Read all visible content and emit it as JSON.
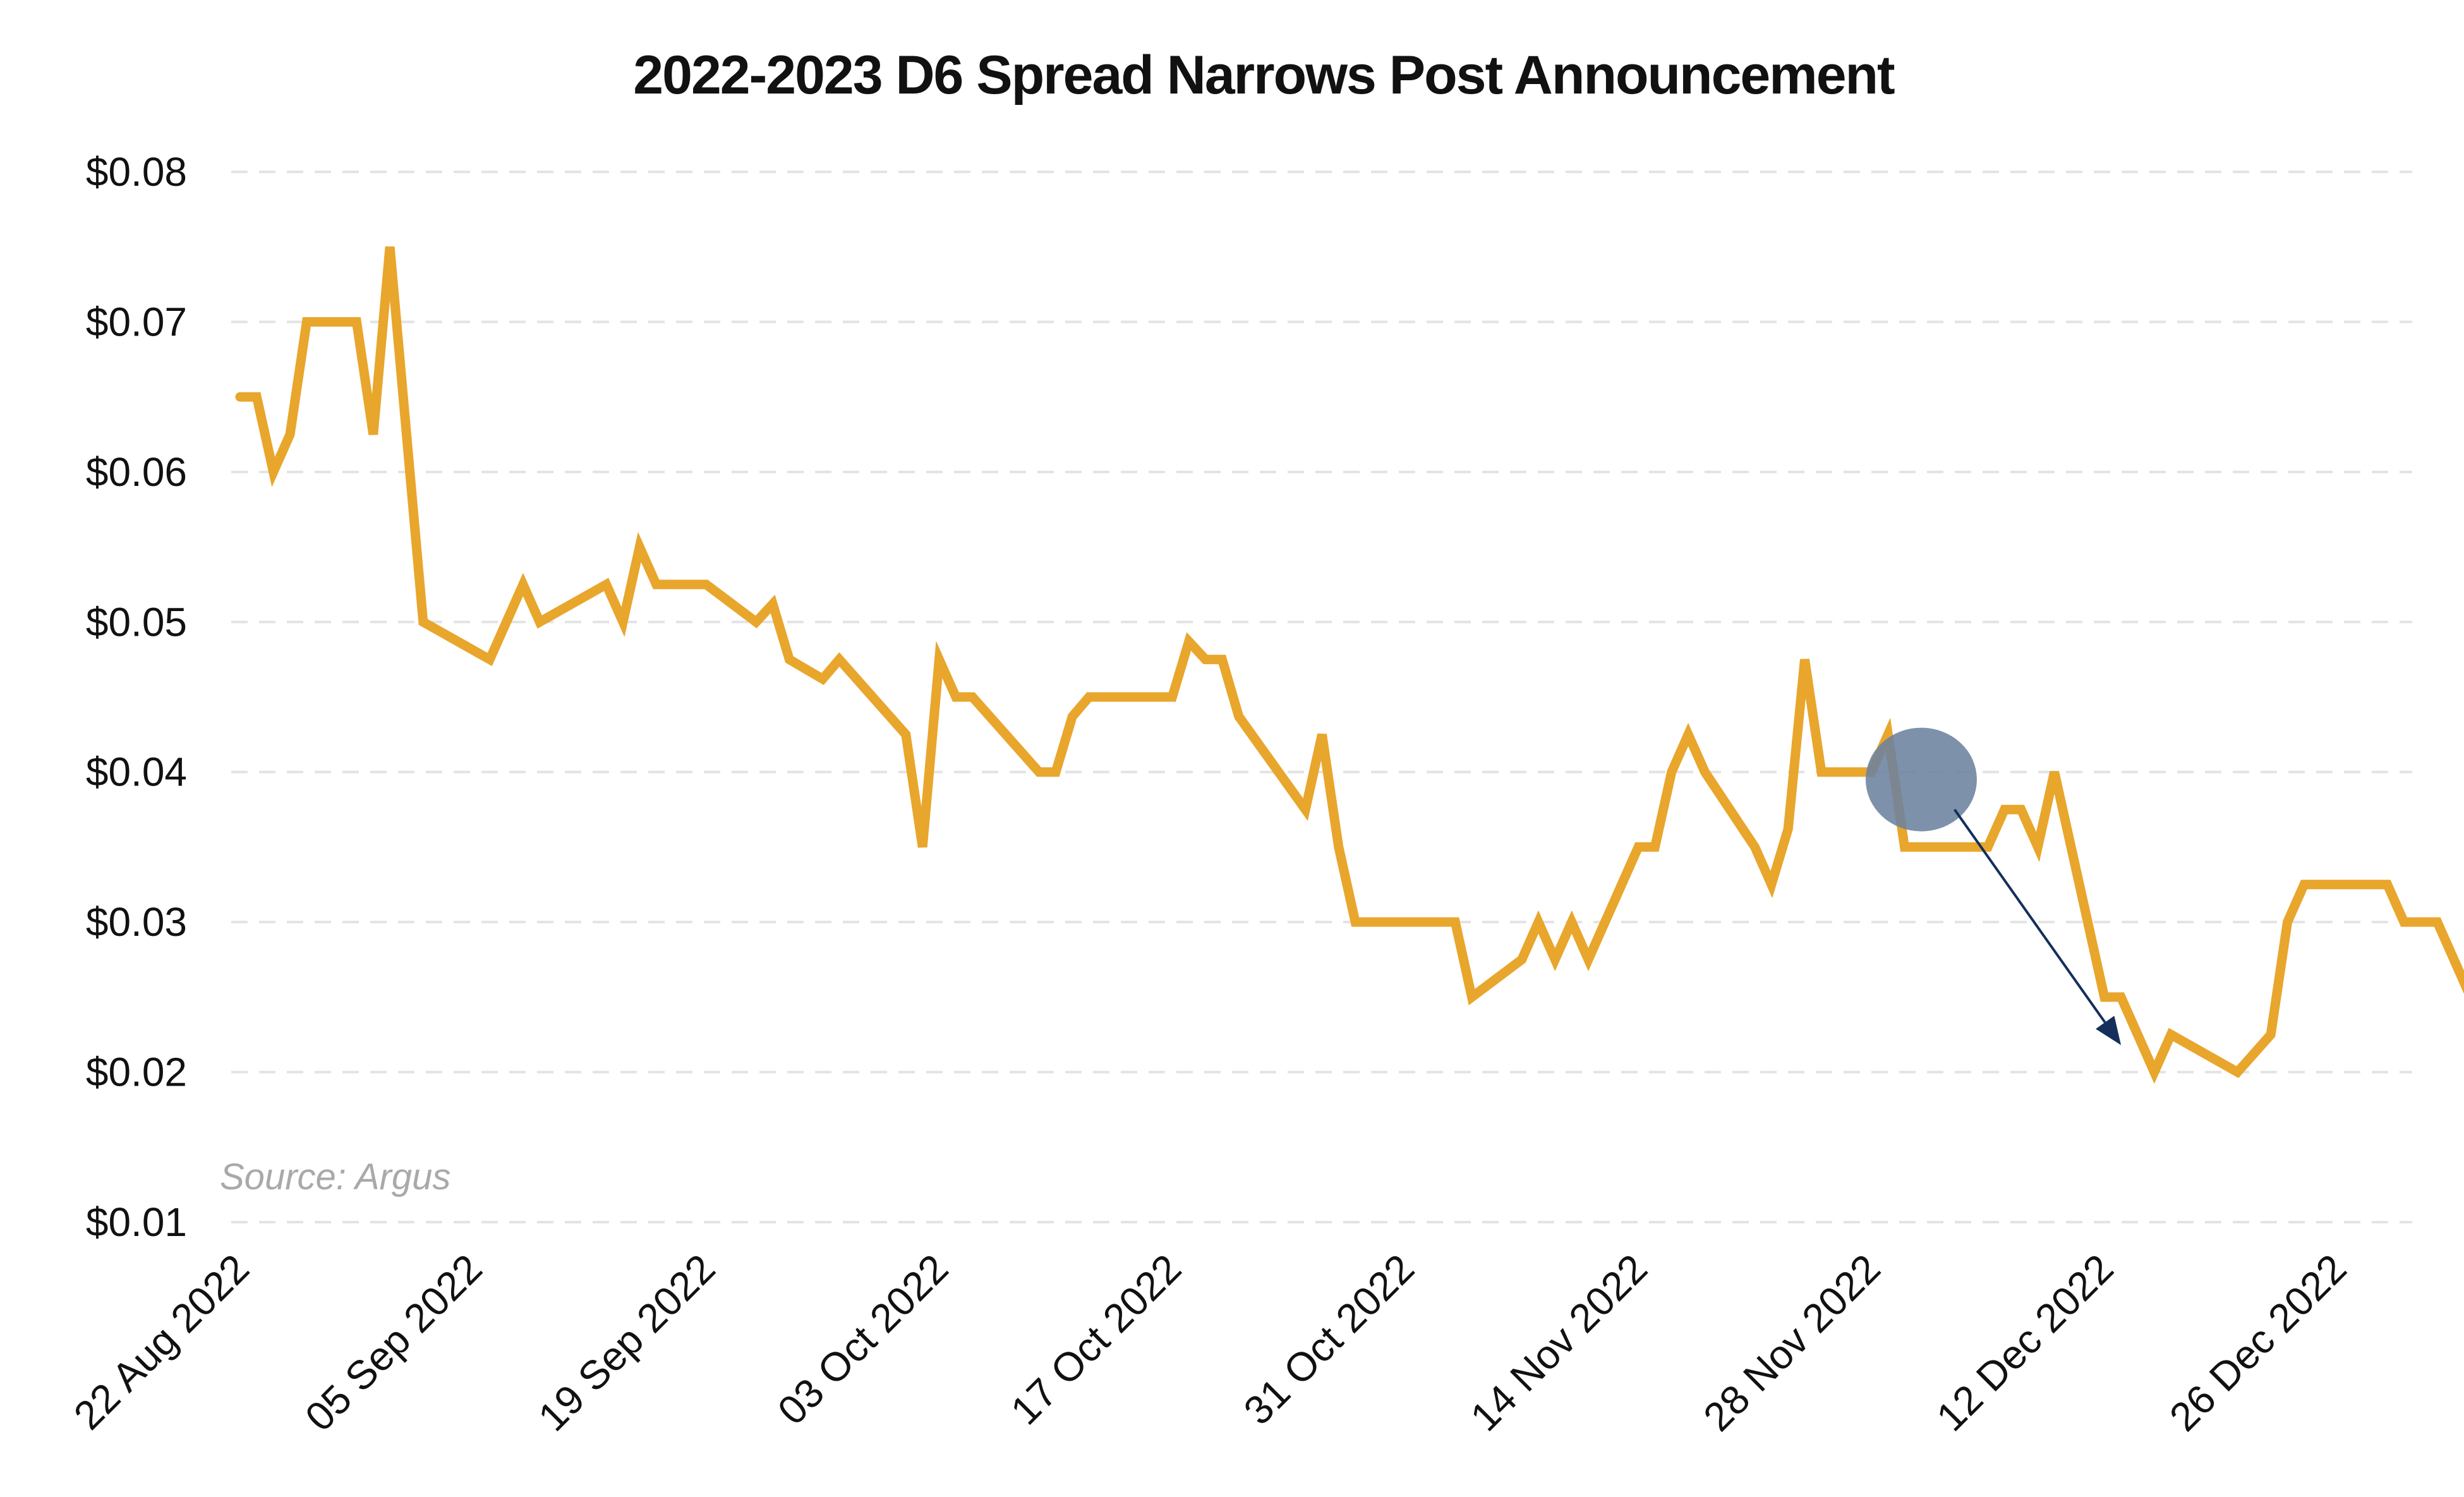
{
  "chart_data": {
    "type": "line",
    "title": "2022-2023 D6 Spread Narrows Post Announcement",
    "xlabel": "",
    "ylabel": "",
    "ylim": [
      0.01,
      0.08
    ],
    "xlim": [
      "2022-08-22",
      "2022-12-30"
    ],
    "y_ticks": [
      {
        "value": 0.08,
        "label": "$0.08"
      },
      {
        "value": 0.07,
        "label": "$0.07"
      },
      {
        "value": 0.06,
        "label": "$0.06"
      },
      {
        "value": 0.05,
        "label": "$0.05"
      },
      {
        "value": 0.04,
        "label": "$0.04"
      },
      {
        "value": 0.03,
        "label": "$0.03"
      },
      {
        "value": 0.02,
        "label": "$0.02"
      },
      {
        "value": 0.01,
        "label": "$0.01"
      }
    ],
    "x_ticks": [
      {
        "date": "2022-08-22",
        "label": "22 Aug 2022"
      },
      {
        "date": "2022-09-05",
        "label": "05 Sep 2022"
      },
      {
        "date": "2022-09-19",
        "label": "19 Sep 2022"
      },
      {
        "date": "2022-10-03",
        "label": "03 Oct 2022"
      },
      {
        "date": "2022-10-17",
        "label": "17 Oct 2022"
      },
      {
        "date": "2022-10-31",
        "label": "31 Oct 2022"
      },
      {
        "date": "2022-11-14",
        "label": "14 Nov 2022"
      },
      {
        "date": "2022-11-28",
        "label": "28 Nov 2022"
      },
      {
        "date": "2022-12-12",
        "label": "12 Dec 2022"
      },
      {
        "date": "2022-12-26",
        "label": "26 Dec 2022"
      }
    ],
    "grid": true,
    "source": "Source: Argus",
    "line_color": "#E8A62C",
    "highlight": {
      "date": "2022-12-01",
      "value": 0.0395,
      "color": "#6B829E"
    },
    "arrow": {
      "from": {
        "date": "2022-12-03",
        "value": 0.0375
      },
      "to": {
        "date": "2022-12-13",
        "value": 0.0218
      },
      "color": "#142F5A"
    },
    "series": [
      {
        "points": [
          [
            "2022-08-22",
            0.065
          ],
          [
            "2022-08-23",
            0.065
          ],
          [
            "2022-08-24",
            0.06
          ],
          [
            "2022-08-25",
            0.0625
          ],
          [
            "2022-08-26",
            0.07
          ],
          [
            "2022-08-29",
            0.07
          ],
          [
            "2022-08-30",
            0.0625
          ],
          [
            "2022-08-31",
            0.075
          ],
          [
            "2022-09-02",
            0.05
          ],
          [
            "2022-09-06",
            0.0475
          ],
          [
            "2022-09-08",
            0.0525
          ],
          [
            "2022-09-09",
            0.05
          ],
          [
            "2022-09-13",
            0.0525
          ],
          [
            "2022-09-14",
            0.05
          ],
          [
            "2022-09-15",
            0.055
          ],
          [
            "2022-09-16",
            0.0525
          ],
          [
            "2022-09-19",
            0.0525
          ],
          [
            "2022-09-22",
            0.05
          ],
          [
            "2022-09-23",
            0.0512
          ],
          [
            "2022-09-24",
            0.0475
          ],
          [
            "2022-09-26",
            0.0462
          ],
          [
            "2022-09-27",
            0.0475
          ],
          [
            "2022-10-01",
            0.0425
          ],
          [
            "2022-10-02",
            0.035
          ],
          [
            "2022-10-03",
            0.0475
          ],
          [
            "2022-10-04",
            0.045
          ],
          [
            "2022-10-05",
            0.045
          ],
          [
            "2022-10-09",
            0.04
          ],
          [
            "2022-10-10",
            0.04
          ],
          [
            "2022-10-11",
            0.0437
          ],
          [
            "2022-10-12",
            0.045
          ],
          [
            "2022-10-17",
            0.045
          ],
          [
            "2022-10-18",
            0.0487
          ],
          [
            "2022-10-19",
            0.0475
          ],
          [
            "2022-10-20",
            0.0475
          ],
          [
            "2022-10-21",
            0.0437
          ],
          [
            "2022-10-25",
            0.0375
          ],
          [
            "2022-10-26",
            0.0425
          ],
          [
            "2022-10-27",
            0.035
          ],
          [
            "2022-10-28",
            0.03
          ],
          [
            "2022-11-03",
            0.03
          ],
          [
            "2022-11-04",
            0.025
          ],
          [
            "2022-11-07",
            0.0275
          ],
          [
            "2022-11-08",
            0.03
          ],
          [
            "2022-11-09",
            0.0275
          ],
          [
            "2022-11-10",
            0.03
          ],
          [
            "2022-11-11",
            0.0275
          ],
          [
            "2022-11-14",
            0.035
          ],
          [
            "2022-11-15",
            0.035
          ],
          [
            "2022-11-16",
            0.04
          ],
          [
            "2022-11-17",
            0.0425
          ],
          [
            "2022-11-18",
            0.04
          ],
          [
            "2022-11-21",
            0.035
          ],
          [
            "2022-11-22",
            0.0325
          ],
          [
            "2022-11-23",
            0.0362
          ],
          [
            "2022-11-24",
            0.0475
          ],
          [
            "2022-11-25",
            0.04
          ],
          [
            "2022-11-28",
            0.04
          ],
          [
            "2022-11-29",
            0.0425
          ],
          [
            "2022-11-30",
            0.035
          ],
          [
            "2022-12-05",
            0.035
          ],
          [
            "2022-12-06",
            0.0375
          ],
          [
            "2022-12-07",
            0.0375
          ],
          [
            "2022-12-08",
            0.035
          ],
          [
            "2022-12-09",
            0.04
          ],
          [
            "2022-12-12",
            0.025
          ],
          [
            "2022-12-13",
            0.025
          ],
          [
            "2022-12-15",
            0.02
          ],
          [
            "2022-12-16",
            0.0225
          ],
          [
            "2022-12-20",
            0.02
          ],
          [
            "2022-12-22",
            0.0225
          ],
          [
            "2022-12-23",
            0.03
          ],
          [
            "2022-12-24",
            0.0325
          ],
          [
            "2022-12-29",
            0.0325
          ],
          [
            "2022-12-30",
            0.03
          ],
          [
            "2023-01-01",
            0.03
          ],
          [
            "2023-01-05",
            0.02
          ]
        ]
      }
    ]
  }
}
